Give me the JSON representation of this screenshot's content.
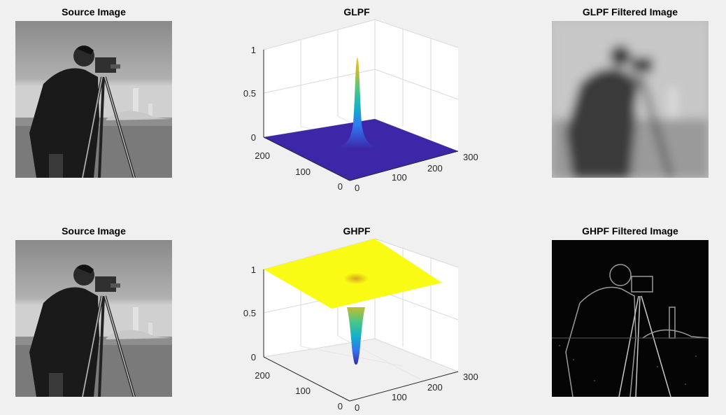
{
  "panels": {
    "p1": {
      "title": "Source Image"
    },
    "p2": {
      "title": "GLPF"
    },
    "p3": {
      "title": "GLPF Filtered Image"
    },
    "p4": {
      "title": "Source Image"
    },
    "p5": {
      "title": "GHPF"
    },
    "p6": {
      "title": "GHPF Filtered Image"
    }
  },
  "chart_data": [
    {
      "type": "surface",
      "title": "GLPF",
      "x_ticks": [
        "0",
        "100",
        "200",
        "300"
      ],
      "y_ticks": [
        "0",
        "100",
        "200"
      ],
      "z_ticks": [
        "0",
        "0.5",
        "1"
      ],
      "zlim": [
        0,
        1
      ],
      "peak_value": 1,
      "base_value": 0,
      "colormap": [
        "#3e26a8",
        "#2f77f0",
        "#15b1c8",
        "#4bc784",
        "#c4bc2e",
        "#f9fb15"
      ]
    },
    {
      "type": "surface",
      "title": "GHPF",
      "x_ticks": [
        "0",
        "100",
        "200",
        "300"
      ],
      "y_ticks": [
        "0",
        "100",
        "200"
      ],
      "z_ticks": [
        "0",
        "0.5",
        "1"
      ],
      "zlim": [
        0,
        1
      ],
      "peak_value": 0,
      "base_value": 1,
      "colormap": [
        "#3e26a8",
        "#2f77f0",
        "#15b1c8",
        "#4bc784",
        "#c4bc2e",
        "#f9fb15"
      ]
    }
  ]
}
